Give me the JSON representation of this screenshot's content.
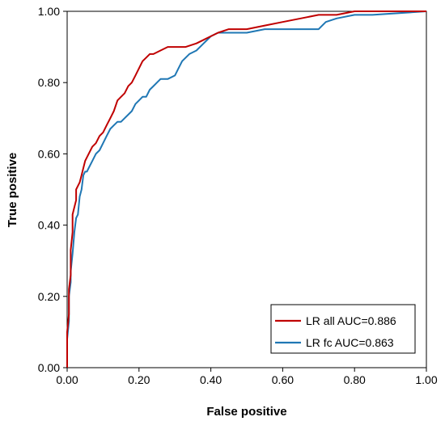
{
  "chart_data": {
    "type": "line",
    "title": "",
    "xlabel": "False positive",
    "ylabel": "True positive",
    "xlim": [
      0,
      1
    ],
    "ylim": [
      0,
      1
    ],
    "x_ticks": [
      "0.00",
      "0.20",
      "0.40",
      "0.60",
      "0.80",
      "1.00"
    ],
    "y_ticks": [
      "0.00",
      "0.20",
      "0.40",
      "0.60",
      "0.80",
      "1.00"
    ],
    "grid": false,
    "legend_position": "bottom-right",
    "series": [
      {
        "name": "LR all AUC=0.886",
        "color": "#c00000",
        "x": [
          0.0,
          0.0,
          0.005,
          0.005,
          0.01,
          0.01,
          0.015,
          0.015,
          0.02,
          0.025,
          0.025,
          0.03,
          0.035,
          0.04,
          0.045,
          0.05,
          0.06,
          0.07,
          0.08,
          0.09,
          0.1,
          0.11,
          0.12,
          0.13,
          0.14,
          0.15,
          0.16,
          0.17,
          0.18,
          0.19,
          0.2,
          0.21,
          0.22,
          0.23,
          0.24,
          0.26,
          0.28,
          0.3,
          0.33,
          0.36,
          0.38,
          0.4,
          0.42,
          0.45,
          0.5,
          0.55,
          0.6,
          0.65,
          0.7,
          0.75,
          0.8,
          0.83,
          0.85,
          1.0
        ],
        "y": [
          0.0,
          0.1,
          0.15,
          0.22,
          0.26,
          0.33,
          0.38,
          0.43,
          0.45,
          0.47,
          0.5,
          0.51,
          0.52,
          0.54,
          0.56,
          0.58,
          0.6,
          0.62,
          0.63,
          0.65,
          0.66,
          0.68,
          0.7,
          0.72,
          0.75,
          0.76,
          0.77,
          0.79,
          0.8,
          0.82,
          0.84,
          0.86,
          0.87,
          0.88,
          0.88,
          0.89,
          0.9,
          0.9,
          0.9,
          0.91,
          0.92,
          0.93,
          0.94,
          0.95,
          0.95,
          0.96,
          0.97,
          0.98,
          0.99,
          0.99,
          1.0,
          1.0,
          1.0,
          1.0
        ]
      },
      {
        "name": "LR fc AUC=0.863",
        "color": "#1f77b4",
        "x": [
          0.0,
          0.0,
          0.005,
          0.005,
          0.01,
          0.01,
          0.015,
          0.02,
          0.025,
          0.03,
          0.035,
          0.04,
          0.045,
          0.05,
          0.055,
          0.06,
          0.07,
          0.08,
          0.09,
          0.1,
          0.11,
          0.12,
          0.13,
          0.14,
          0.15,
          0.16,
          0.17,
          0.18,
          0.19,
          0.2,
          0.21,
          0.22,
          0.23,
          0.24,
          0.25,
          0.26,
          0.27,
          0.28,
          0.3,
          0.31,
          0.32,
          0.34,
          0.36,
          0.38,
          0.4,
          0.42,
          0.45,
          0.5,
          0.55,
          0.6,
          0.65,
          0.7,
          0.72,
          0.75,
          0.8,
          0.85,
          1.0
        ],
        "y": [
          0.0,
          0.08,
          0.13,
          0.2,
          0.24,
          0.27,
          0.32,
          0.38,
          0.42,
          0.43,
          0.48,
          0.5,
          0.54,
          0.55,
          0.55,
          0.56,
          0.58,
          0.6,
          0.61,
          0.63,
          0.65,
          0.67,
          0.68,
          0.69,
          0.69,
          0.7,
          0.71,
          0.72,
          0.74,
          0.75,
          0.76,
          0.76,
          0.78,
          0.79,
          0.8,
          0.81,
          0.81,
          0.81,
          0.82,
          0.84,
          0.86,
          0.88,
          0.89,
          0.91,
          0.93,
          0.94,
          0.94,
          0.94,
          0.95,
          0.95,
          0.95,
          0.95,
          0.97,
          0.98,
          0.99,
          0.99,
          1.0
        ]
      }
    ]
  }
}
